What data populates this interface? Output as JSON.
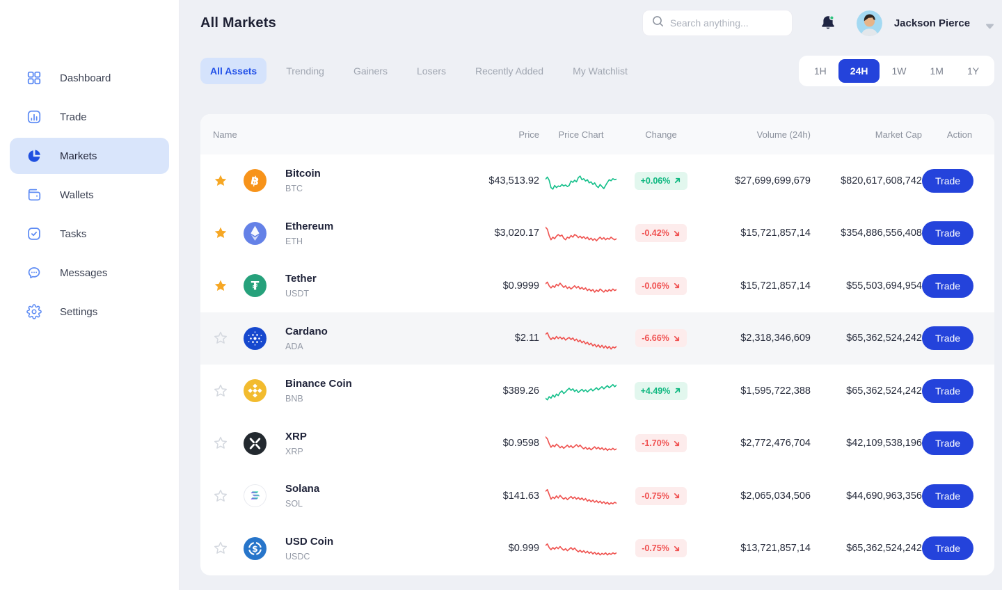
{
  "colors": {
    "accent": "#2443db",
    "positive": "#0eb880",
    "negative": "#f05252",
    "positive_bg": "#e2f7ee",
    "negative_bg": "#fdecec",
    "spark_up": "#16c08b",
    "spark_down": "#ef5350",
    "star_active": "#f6a724",
    "star_inactive": "#d4d8df"
  },
  "sidebar": {
    "items": [
      {
        "id": "dashboard",
        "label": "Dashboard",
        "icon": "dashboard-icon",
        "active": false
      },
      {
        "id": "trade",
        "label": "Trade",
        "icon": "trade-icon",
        "active": false
      },
      {
        "id": "markets",
        "label": "Markets",
        "icon": "markets-icon",
        "active": true
      },
      {
        "id": "wallets",
        "label": "Wallets",
        "icon": "wallets-icon",
        "active": false
      },
      {
        "id": "tasks",
        "label": "Tasks",
        "icon": "tasks-icon",
        "active": false
      },
      {
        "id": "messages",
        "label": "Messages",
        "icon": "messages-icon",
        "active": false
      },
      {
        "id": "settings",
        "label": "Settings",
        "icon": "settings-icon",
        "active": false
      }
    ]
  },
  "header": {
    "title": "All Markets",
    "search_placeholder": "Search anything...",
    "notification_icon": "bell-icon",
    "user_name": "Jackson Pierce"
  },
  "filters": {
    "tabs": [
      {
        "label": "All Assets",
        "active": true
      },
      {
        "label": "Trending",
        "active": false
      },
      {
        "label": "Gainers",
        "active": false
      },
      {
        "label": "Losers",
        "active": false
      },
      {
        "label": "Recently Added",
        "active": false
      },
      {
        "label": "My Watchlist",
        "active": false
      }
    ],
    "ranges": [
      {
        "label": "1H",
        "active": false
      },
      {
        "label": "24H",
        "active": true
      },
      {
        "label": "1W",
        "active": false
      },
      {
        "label": "1M",
        "active": false
      },
      {
        "label": "1Y",
        "active": false
      }
    ]
  },
  "table": {
    "columns": [
      {
        "label": "Name",
        "align": "left"
      },
      {
        "label": "Price",
        "align": "right"
      },
      {
        "label": "Price Chart",
        "align": "center"
      },
      {
        "label": "Change",
        "align": "center"
      },
      {
        "label": "Volume (24h)",
        "align": "right"
      },
      {
        "label": "Market Cap",
        "align": "right"
      },
      {
        "label": "Action",
        "align": "right"
      }
    ],
    "rows": [
      {
        "name": "Bitcoin",
        "symbol": "BTC",
        "icon": "btc-coin-icon",
        "starred": true,
        "highlighted": false,
        "price": "$43,513.92",
        "change": "+0.06%",
        "direction": "up",
        "volume": "$27,699,699,679",
        "market_cap": "$820,617,608,742",
        "action_label": "Trade",
        "spark": [
          62,
          70,
          58,
          30,
          24,
          38,
          30,
          36,
          34,
          42,
          36,
          40,
          34,
          38,
          55,
          50,
          58,
          52,
          68,
          74,
          60,
          64,
          55,
          60,
          48,
          52,
          42,
          48,
          36,
          30,
          42,
          34,
          26,
          38,
          50,
          60,
          56,
          64,
          60,
          62
        ]
      },
      {
        "name": "Ethereum",
        "symbol": "ETH",
        "icon": "eth-coin-icon",
        "starred": true,
        "highlighted": false,
        "price": "$3,020.17",
        "change": "-0.42%",
        "direction": "down",
        "volume": "$15,721,857,14",
        "market_cap": "$354,886,556,408",
        "action_label": "Trade",
        "spark": [
          78,
          70,
          46,
          30,
          40,
          34,
          44,
          50,
          44,
          48,
          36,
          30,
          40,
          36,
          46,
          40,
          50,
          46,
          38,
          44,
          36,
          42,
          34,
          40,
          30,
          36,
          28,
          34,
          26,
          34,
          40,
          32,
          38,
          30,
          36,
          32,
          40,
          34,
          30,
          34
        ]
      },
      {
        "name": "Tether",
        "symbol": "USDT",
        "icon": "usdt-coin-icon",
        "starred": true,
        "highlighted": false,
        "price": "$0.9999",
        "change": "-0.06%",
        "direction": "down",
        "volume": "$15,721,857,14",
        "market_cap": "$55,503,694,954",
        "action_label": "Trade",
        "spark": [
          64,
          70,
          56,
          48,
          56,
          50,
          62,
          56,
          66,
          58,
          50,
          56,
          46,
          52,
          44,
          50,
          56,
          48,
          54,
          44,
          50,
          42,
          48,
          38,
          44,
          36,
          42,
          32,
          40,
          34,
          44,
          38,
          32,
          40,
          34,
          42,
          36,
          44,
          38,
          42
        ]
      },
      {
        "name": "Cardano",
        "symbol": "ADA",
        "icon": "ada-coin-icon",
        "starred": false,
        "highlighted": true,
        "price": "$2.11",
        "change": "-6.66%",
        "direction": "down",
        "volume": "$2,318,346,609",
        "market_cap": "$65,362,524,242",
        "action_label": "Trade",
        "spark": [
          70,
          76,
          60,
          50,
          58,
          52,
          62,
          54,
          60,
          52,
          58,
          48,
          54,
          58,
          50,
          56,
          46,
          52,
          42,
          48,
          38,
          44,
          34,
          40,
          30,
          36,
          26,
          32,
          22,
          30,
          20,
          28,
          18,
          26,
          16,
          24,
          14,
          22,
          18,
          24
        ]
      },
      {
        "name": "Binance Coin",
        "symbol": "BNB",
        "icon": "bnb-coin-icon",
        "starred": false,
        "highlighted": false,
        "price": "$389.26",
        "change": "+4.49%",
        "direction": "up",
        "volume": "$1,595,722,388",
        "market_cap": "$65,362,524,242",
        "action_label": "Trade",
        "spark": [
          28,
          22,
          34,
          28,
          40,
          32,
          44,
          38,
          50,
          56,
          46,
          52,
          60,
          66,
          58,
          64,
          54,
          60,
          50,
          56,
          62,
          54,
          60,
          52,
          58,
          64,
          56,
          62,
          68,
          60,
          66,
          72,
          64,
          70,
          76,
          68,
          74,
          80,
          72,
          78
        ]
      },
      {
        "name": "XRP",
        "symbol": "XRP",
        "icon": "xrp-coin-icon",
        "starred": false,
        "highlighted": false,
        "price": "$0.9598",
        "change": "-1.70%",
        "direction": "down",
        "volume": "$2,772,476,704",
        "market_cap": "$42,109,538,196",
        "action_label": "Trade",
        "spark": [
          80,
          72,
          54,
          40,
          48,
          42,
          52,
          46,
          38,
          44,
          36,
          42,
          48,
          40,
          46,
          38,
          44,
          50,
          42,
          48,
          40,
          34,
          40,
          32,
          38,
          30,
          36,
          42,
          34,
          40,
          32,
          38,
          30,
          36,
          28,
          34,
          30,
          36,
          30,
          34
        ]
      },
      {
        "name": "Solana",
        "symbol": "SOL",
        "icon": "sol-coin-icon",
        "starred": false,
        "highlighted": false,
        "price": "$141.63",
        "change": "-0.75%",
        "direction": "down",
        "volume": "$2,065,034,506",
        "market_cap": "$44,690,963,356",
        "action_label": "Trade",
        "spark": [
          74,
          80,
          62,
          44,
          52,
          46,
          56,
          48,
          58,
          50,
          44,
          50,
          42,
          48,
          54,
          46,
          52,
          44,
          50,
          42,
          48,
          40,
          46,
          36,
          42,
          34,
          40,
          32,
          38,
          30,
          36,
          28,
          34,
          26,
          32,
          24,
          30,
          26,
          32,
          28
        ]
      },
      {
        "name": "USD Coin",
        "symbol": "USDC",
        "icon": "usdc-coin-icon",
        "starred": false,
        "highlighted": false,
        "price": "$0.999",
        "change": "-0.75%",
        "direction": "down",
        "volume": "$13,721,857,14",
        "market_cap": "$65,362,524,242",
        "action_label": "Trade",
        "spark": [
          66,
          72,
          58,
          50,
          58,
          52,
          60,
          54,
          62,
          54,
          48,
          54,
          46,
          52,
          58,
          50,
          56,
          48,
          42,
          48,
          40,
          46,
          38,
          44,
          36,
          42,
          34,
          40,
          32,
          38,
          30,
          36,
          32,
          38,
          30,
          36,
          32,
          38,
          34,
          38
        ]
      }
    ]
  }
}
